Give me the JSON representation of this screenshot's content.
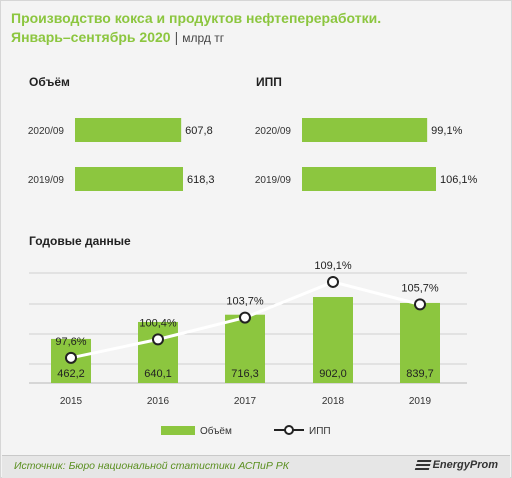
{
  "header": {
    "title": "Производство кокса и продуктов нефтепереработки.",
    "subtitle": "Январь–сентябрь 2020",
    "separator": "|",
    "unit": "млрд тг"
  },
  "colors": {
    "accent": "#8cc63f",
    "line": "#ffffff",
    "text": "#222222"
  },
  "chart_data": [
    {
      "type": "bar",
      "orientation": "horizontal",
      "title": "Объём",
      "categories": [
        "2020/09",
        "2019/09"
      ],
      "values": [
        607.8,
        618.3
      ],
      "value_labels": [
        "607,8",
        "618,3"
      ],
      "xlim": [
        0,
        618.3
      ]
    },
    {
      "type": "bar",
      "orientation": "horizontal",
      "title": "ИПП",
      "categories": [
        "2020/09",
        "2019/09"
      ],
      "values": [
        99.1,
        106.1
      ],
      "value_labels": [
        "99,1%",
        "106,1%"
      ],
      "xlim": [
        0,
        106.1
      ]
    },
    {
      "type": "bar",
      "title": "Годовые данные",
      "categories": [
        "2015",
        "2016",
        "2017",
        "2018",
        "2019"
      ],
      "series": [
        {
          "name": "Объём",
          "type": "bar",
          "values": [
            462.2,
            640.1,
            716.3,
            902.0,
            839.7
          ],
          "value_labels": [
            "462,2",
            "640,1",
            "716,3",
            "902,0",
            "839,7"
          ]
        },
        {
          "name": "ИПП",
          "type": "line",
          "values": [
            97.6,
            100.4,
            103.7,
            109.1,
            105.7
          ],
          "value_labels": [
            "97,6%",
            "100,4%",
            "103,7%",
            "109,1%",
            "105,7%"
          ]
        }
      ],
      "ylim_bars": [
        0,
        902.0
      ],
      "ylim_line": [
        90,
        110
      ],
      "grid": true,
      "legend": "bottom"
    }
  ],
  "footer": {
    "source": "Источник: Бюро национальной  статистики АСПиР РК",
    "logo": "EnergyProm"
  }
}
